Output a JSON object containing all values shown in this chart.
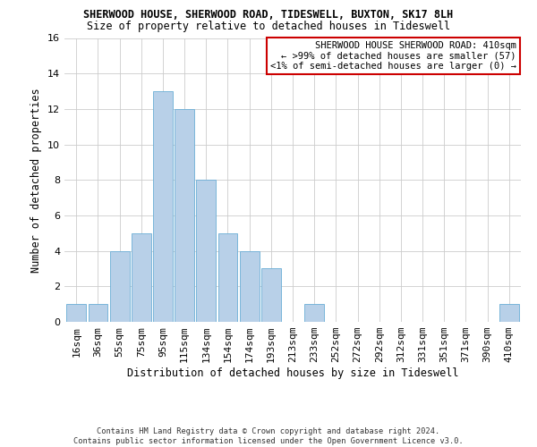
{
  "title": "SHERWOOD HOUSE, SHERWOOD ROAD, TIDESWELL, BUXTON, SK17 8LH",
  "subtitle": "Size of property relative to detached houses in Tideswell",
  "xlabel": "Distribution of detached houses by size in Tideswell",
  "ylabel": "Number of detached properties",
  "bar_color": "#b8d0e8",
  "bar_edge_color": "#6aaed6",
  "categories": [
    "16sqm",
    "36sqm",
    "55sqm",
    "75sqm",
    "95sqm",
    "115sqm",
    "134sqm",
    "154sqm",
    "174sqm",
    "193sqm",
    "213sqm",
    "233sqm",
    "252sqm",
    "272sqm",
    "292sqm",
    "312sqm",
    "331sqm",
    "351sqm",
    "371sqm",
    "390sqm",
    "410sqm"
  ],
  "values": [
    1,
    1,
    4,
    5,
    13,
    12,
    8,
    5,
    4,
    3,
    0,
    1,
    0,
    0,
    0,
    0,
    0,
    0,
    0,
    0,
    1
  ],
  "ylim": [
    0,
    16
  ],
  "yticks": [
    0,
    2,
    4,
    6,
    8,
    10,
    12,
    14,
    16
  ],
  "annotation_title": "SHERWOOD HOUSE SHERWOOD ROAD: 410sqm",
  "annotation_line1": "← >99% of detached houses are smaller (57)",
  "annotation_line2": "<1% of semi-detached houses are larger (0) →",
  "annotation_box_color": "#ffffff",
  "annotation_box_edge": "#cc0000",
  "footer": "Contains HM Land Registry data © Crown copyright and database right 2024.\nContains public sector information licensed under the Open Government Licence v3.0.",
  "grid_color": "#cccccc",
  "background_color": "#ffffff",
  "title_fontsize": 8.5,
  "subtitle_fontsize": 8.5,
  "ylabel_fontsize": 8.5,
  "xlabel_fontsize": 8.5,
  "tick_fontsize": 8,
  "annotation_fontsize": 7.5,
  "footer_fontsize": 6.2
}
